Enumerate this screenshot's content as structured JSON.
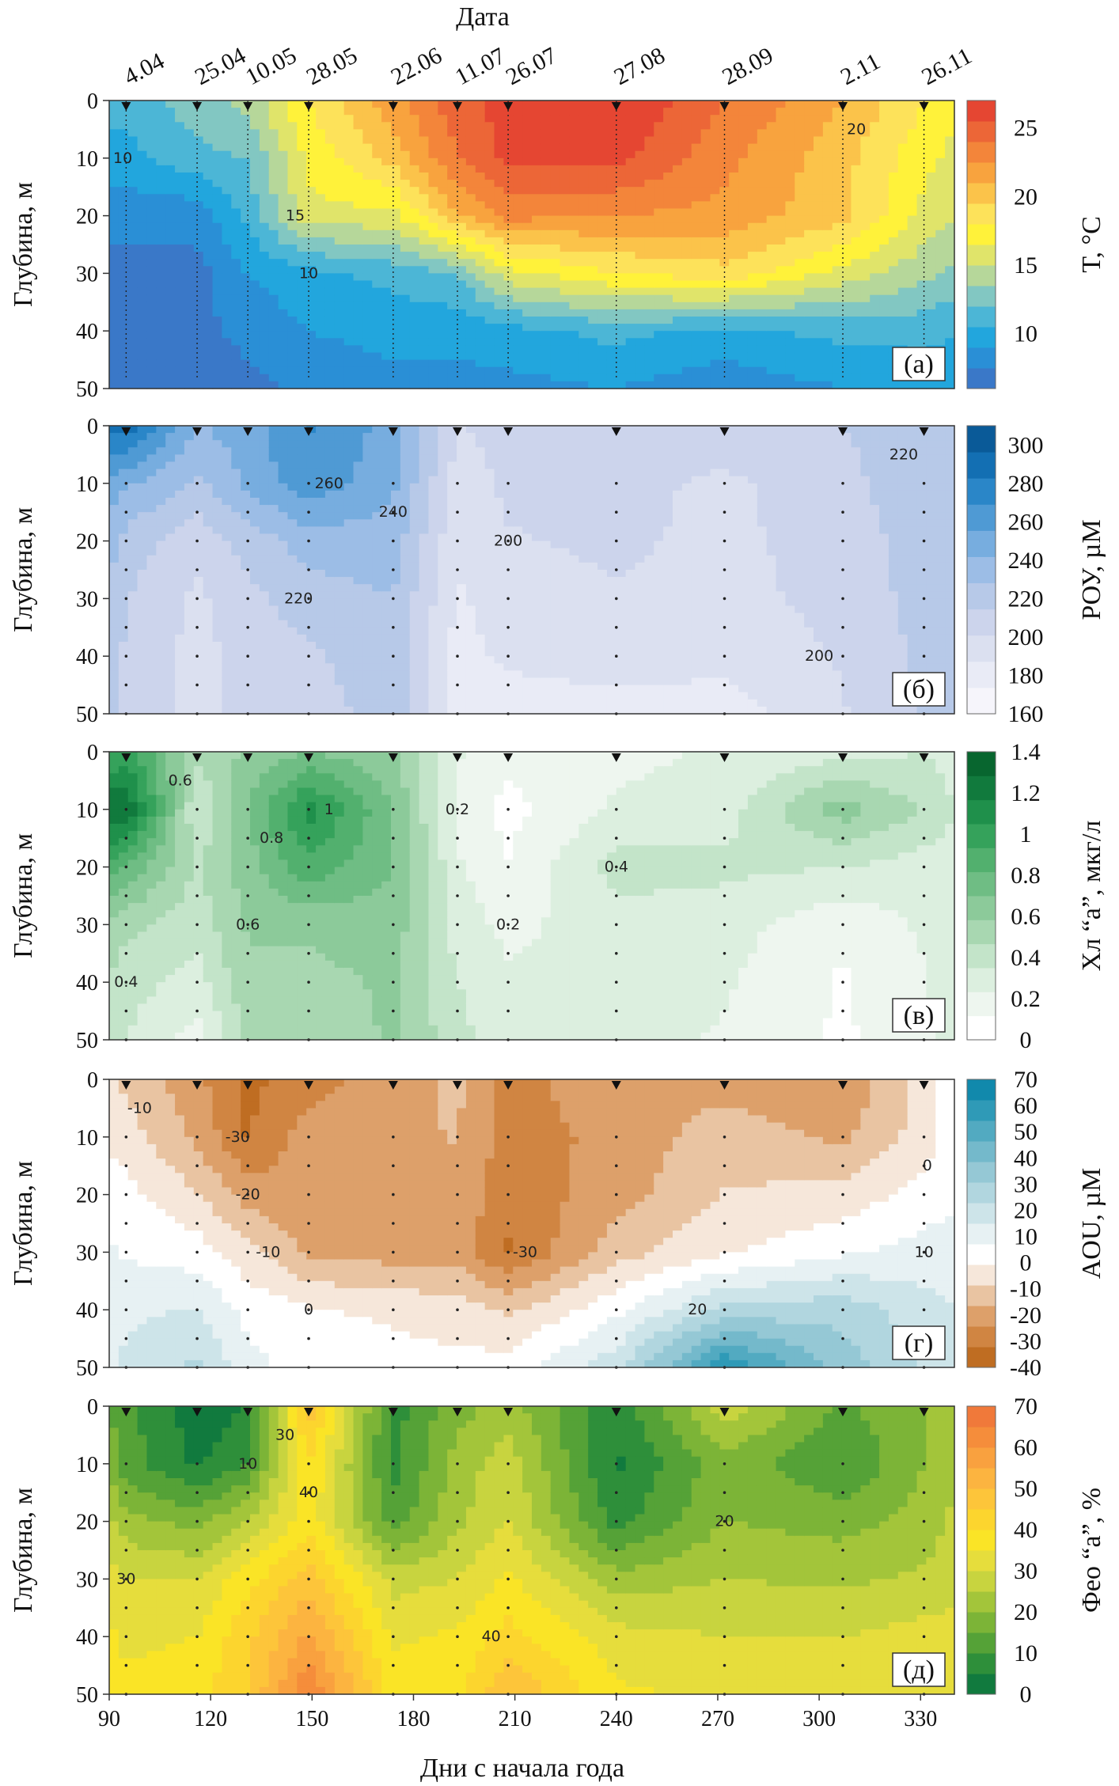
{
  "figure": {
    "date_axis_title": "Дата",
    "x_axis_title": "Дни с начала года",
    "x_ticks": [
      90,
      120,
      150,
      180,
      210,
      240,
      270,
      300,
      330
    ],
    "x_range": [
      90,
      340
    ],
    "depth_ticks": [
      0,
      10,
      20,
      30,
      40,
      50
    ],
    "depth_range": [
      0,
      50
    ],
    "y_axis_title": "Глубина, м"
  },
  "station_dates": [
    {
      "label": "4.04",
      "day": 95
    },
    {
      "label": "25.04",
      "day": 116
    },
    {
      "label": "10.05",
      "day": 131
    },
    {
      "label": "28.05",
      "day": 149
    },
    {
      "label": "22.06",
      "day": 174
    },
    {
      "label": "11.07",
      "day": 193
    },
    {
      "label": "26.07",
      "day": 208
    },
    {
      "label": "27.08",
      "day": 240
    },
    {
      "label": "28.09",
      "day": 272
    },
    {
      "label": "2.11",
      "day": 307
    },
    {
      "label": "26.11",
      "day": 331
    }
  ],
  "chart_data": [
    {
      "type": "heatmap",
      "panel_label": "(а)",
      "colorbar_title": "T, °C",
      "colorbar_ticks": [
        10,
        15,
        20,
        25
      ],
      "colorbar_range": [
        6,
        27
      ],
      "colors": [
        "#3a78c8",
        "#2a8fd6",
        "#22a6dd",
        "#4cb6d6",
        "#82c7c2",
        "#b6d79a",
        "#e0e46a",
        "#fff23a",
        "#fde25a",
        "#fbc34a",
        "#f8a33e",
        "#f3853a",
        "#ec6637",
        "#e54632"
      ],
      "x": [
        95,
        116,
        131,
        149,
        174,
        193,
        208,
        240,
        272,
        307,
        331,
        340
      ],
      "depth": [
        0,
        10,
        20,
        30,
        40,
        50
      ],
      "values": [
        [
          11,
          13,
          14,
          18,
          22,
          25,
          26,
          27,
          24,
          21,
          18,
          17
        ],
        [
          10,
          11.5,
          12,
          17,
          20,
          24,
          26,
          26,
          23,
          20,
          17,
          16
        ],
        [
          8,
          8,
          11,
          16,
          16,
          21,
          23,
          22.5,
          22,
          20,
          16,
          15
        ],
        [
          7,
          7,
          9,
          10,
          11,
          12,
          16,
          18,
          19,
          16,
          14,
          13
        ],
        [
          7,
          7,
          8,
          9,
          9.5,
          9.5,
          10,
          11,
          10,
          11,
          11,
          10.5
        ],
        [
          6.5,
          6.5,
          7,
          8,
          8.5,
          8.5,
          8.5,
          9,
          8,
          9,
          9.5,
          9.5
        ]
      ],
      "contour_levels": [
        10,
        15,
        20,
        25
      ]
    },
    {
      "type": "heatmap",
      "panel_label": "(б)",
      "colorbar_title": "РОУ, µМ",
      "colorbar_ticks": [
        160,
        180,
        200,
        220,
        240,
        260,
        280,
        300
      ],
      "colorbar_range": [
        160,
        310
      ],
      "colors": [
        "#f6f5fb",
        "#e9ebf6",
        "#dbe0f0",
        "#ccd4ec",
        "#b7c9e8",
        "#9cbde6",
        "#77addf",
        "#4f9ad4",
        "#2a86c8",
        "#136fb3",
        "#0a5a98"
      ],
      "x": [
        90,
        95,
        116,
        131,
        149,
        174,
        193,
        208,
        240,
        272,
        307,
        331,
        340
      ],
      "depth": [
        0,
        10,
        20,
        30,
        40,
        50
      ],
      "values": [
        [
          290,
          290,
          240,
          250,
          270,
          250,
          200,
          205,
          205,
          210,
          215,
          220,
          225
        ],
        [
          250,
          245,
          225,
          245,
          265,
          245,
          195,
          203,
          205,
          198,
          210,
          225,
          225
        ],
        [
          235,
          222,
          205,
          220,
          235,
          235,
          190,
          200,
          203,
          198,
          206,
          222,
          222
        ],
        [
          225,
          215,
          198,
          210,
          222,
          228,
          185,
          195,
          200,
          197,
          205,
          220,
          222
        ],
        [
          222,
          212,
          196,
          207,
          212,
          225,
          182,
          190,
          195,
          192,
          202,
          218,
          220
        ],
        [
          218,
          210,
          196,
          205,
          206,
          223,
          180,
          180,
          180,
          180,
          200,
          215,
          218
        ]
      ],
      "contour_levels": [
        180,
        200,
        220,
        240,
        260,
        280
      ]
    },
    {
      "type": "heatmap",
      "panel_label": "(в)",
      "colorbar_title": "Хл “а”, мкг/л",
      "colorbar_ticks": [
        0,
        0.2,
        0.4,
        0.6,
        0.8,
        1,
        1.2,
        1.4
      ],
      "colorbar_range": [
        0,
        1.4
      ],
      "colors": [
        "#ffffff",
        "#eef6ef",
        "#dcefdf",
        "#c3e4c9",
        "#a8d7b1",
        "#8cca9a",
        "#6fbd84",
        "#52b06e",
        "#35a25b",
        "#1f904b",
        "#117a3d",
        "#08662f"
      ],
      "x": [
        90,
        95,
        116,
        131,
        149,
        174,
        193,
        208,
        240,
        272,
        307,
        331,
        340
      ],
      "depth": [
        0,
        10,
        20,
        30,
        40,
        50
      ],
      "values": [
        [
          0.9,
          1.0,
          0.5,
          0.6,
          0.7,
          0.6,
          0.25,
          0.15,
          0.2,
          0.25,
          0.3,
          0.35,
          0.3
        ],
        [
          1.3,
          1.3,
          0.35,
          0.7,
          1.1,
          0.7,
          0.2,
          0.08,
          0.25,
          0.3,
          0.65,
          0.45,
          0.35
        ],
        [
          0.9,
          0.8,
          0.45,
          0.65,
          0.9,
          0.7,
          0.25,
          0.12,
          0.4,
          0.38,
          0.35,
          0.3,
          0.3
        ],
        [
          0.55,
          0.5,
          0.4,
          0.6,
          0.6,
          0.65,
          0.3,
          0.2,
          0.3,
          0.28,
          0.15,
          0.25,
          0.3
        ],
        [
          0.45,
          0.4,
          0.3,
          0.55,
          0.55,
          0.6,
          0.35,
          0.25,
          0.3,
          0.25,
          0.1,
          0.22,
          0.3
        ],
        [
          0.45,
          0.35,
          0.18,
          0.5,
          0.5,
          0.6,
          0.4,
          0.25,
          0.28,
          0.22,
          0.1,
          0.2,
          0.3
        ]
      ],
      "contour_levels": [
        0.2,
        0.4,
        0.6,
        0.8,
        1
      ]
    },
    {
      "type": "heatmap",
      "panel_label": "(г)",
      "colorbar_title": "AOU, µМ",
      "colorbar_ticks": [
        -40,
        -30,
        -20,
        -10,
        0,
        10,
        20,
        30,
        40,
        50,
        60,
        70
      ],
      "colorbar_range": [
        -40,
        70
      ],
      "colors": [
        "#bf6d22",
        "#d08542",
        "#dda06a",
        "#e9c4a2",
        "#f6e7da",
        "#ffffff",
        "#e7f1f3",
        "#cde4e9",
        "#b1d6df",
        "#95c8d5",
        "#74b9cb",
        "#52aac1",
        "#2f9ab7",
        "#1189ac"
      ],
      "x": [
        90,
        95,
        116,
        131,
        149,
        174,
        193,
        208,
        240,
        272,
        307,
        331,
        340
      ],
      "depth": [
        0,
        10,
        20,
        30,
        40,
        50
      ],
      "values": [
        [
          -8,
          -10,
          -22,
          -34,
          -28,
          -20,
          -15,
          -28,
          -18,
          -20,
          -24,
          -5,
          5
        ],
        [
          -3,
          -5,
          -18,
          -33,
          -20,
          -18,
          -16,
          -28,
          -22,
          -12,
          -18,
          -5,
          5
        ],
        [
          5,
          2,
          -8,
          -20,
          -22,
          -22,
          -18,
          -30,
          -20,
          -8,
          -6,
          3,
          5
        ],
        [
          8,
          6,
          3,
          -6,
          -18,
          -20,
          -20,
          -33,
          -12,
          -2,
          6,
          10,
          12
        ],
        [
          12,
          14,
          15,
          5,
          0,
          -2,
          -5,
          -10,
          5,
          25,
          28,
          18,
          15
        ],
        [
          14,
          16,
          25,
          10,
          3,
          2,
          2,
          3,
          20,
          62,
          35,
          22,
          18
        ]
      ],
      "contour_levels": [
        -30,
        -20,
        -10,
        0,
        10,
        20,
        30,
        40,
        50,
        60
      ]
    },
    {
      "type": "heatmap",
      "panel_label": "(д)",
      "colorbar_title": "Фео “а”, %",
      "colorbar_ticks": [
        0,
        10,
        20,
        30,
        40,
        50,
        60,
        70
      ],
      "colorbar_range": [
        0,
        70
      ],
      "colors": [
        "#117a3e",
        "#2e8f3a",
        "#55a237",
        "#7cb437",
        "#a3c53a",
        "#c8d43f",
        "#e6dd3c",
        "#fae426",
        "#fcd52e",
        "#fdc53a",
        "#fcb440",
        "#f9a13f",
        "#f58d3b",
        "#f0793a"
      ],
      "x": [
        90,
        95,
        116,
        131,
        149,
        174,
        193,
        208,
        240,
        272,
        307,
        331,
        340
      ],
      "depth": [
        0,
        10,
        20,
        30,
        40,
        50
      ],
      "values": [
        [
          15,
          12,
          2,
          5,
          48,
          8,
          18,
          22,
          6,
          28,
          14,
          20,
          22
        ],
        [
          18,
          12,
          4,
          10,
          40,
          8,
          22,
          28,
          4,
          18,
          10,
          20,
          24
        ],
        [
          26,
          22,
          18,
          26,
          38,
          12,
          24,
          30,
          8,
          20,
          18,
          22,
          26
        ],
        [
          32,
          30,
          30,
          38,
          48,
          28,
          30,
          36,
          22,
          25,
          24,
          26,
          28
        ],
        [
          36,
          34,
          35,
          44,
          56,
          34,
          36,
          42,
          32,
          30,
          30,
          32,
          32
        ],
        [
          38,
          36,
          38,
          45,
          65,
          38,
          38,
          50,
          36,
          34,
          34,
          34,
          34
        ]
      ],
      "contour_levels": [
        10,
        20,
        30,
        40,
        50,
        60
      ]
    }
  ]
}
